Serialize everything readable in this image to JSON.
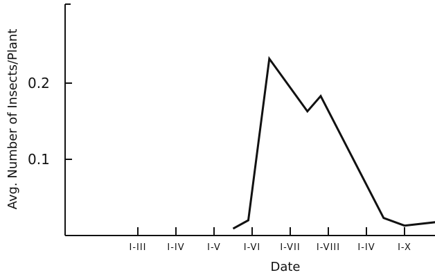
{
  "chart_data": {
    "type": "line",
    "xlabel": "Date",
    "ylabel": "Avg. Number of Insects/Plant",
    "ylim": [
      0,
      0.24
    ],
    "y_ticks": [
      0.1,
      0.2
    ],
    "y_tick_labels": [
      "0.1",
      "0.2"
    ],
    "categories": [
      "I-III",
      "I-IV",
      "I-V",
      "I-VI",
      "I-VII",
      "I-VIII",
      "I-IV",
      "I-X"
    ],
    "grid": false,
    "legend": "none",
    "series": [
      {
        "x": [
          3.5,
          3.9,
          4.45,
          5.45,
          5.8,
          7.45,
          8.0,
          8.9,
          9.7
        ],
        "y": [
          0.009,
          0.02,
          0.232,
          0.163,
          0.183,
          0.023,
          0.013,
          0.018,
          0.017
        ]
      }
    ]
  }
}
